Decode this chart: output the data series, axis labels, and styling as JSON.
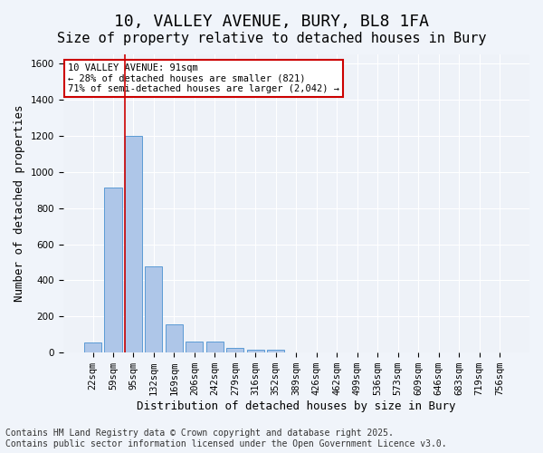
{
  "title_line1": "10, VALLEY AVENUE, BURY, BL8 1FA",
  "title_line2": "Size of property relative to detached houses in Bury",
  "xlabel": "Distribution of detached houses by size in Bury",
  "ylabel": "Number of detached properties",
  "bar_color": "#aec6e8",
  "bar_edge_color": "#5b9bd5",
  "background_color": "#eef2f8",
  "grid_color": "#ffffff",
  "categories": [
    "22sqm",
    "59sqm",
    "95sqm",
    "132sqm",
    "169sqm",
    "206sqm",
    "242sqm",
    "279sqm",
    "316sqm",
    "352sqm",
    "389sqm",
    "426sqm",
    "462sqm",
    "499sqm",
    "536sqm",
    "573sqm",
    "609sqm",
    "646sqm",
    "683sqm",
    "719sqm",
    "756sqm"
  ],
  "values": [
    55,
    915,
    1200,
    475,
    155,
    62,
    62,
    28,
    18,
    18,
    0,
    0,
    0,
    0,
    0,
    0,
    0,
    0,
    0,
    0,
    0
  ],
  "ylim": [
    0,
    1650
  ],
  "yticks": [
    0,
    200,
    400,
    600,
    800,
    1000,
    1200,
    1400,
    1600
  ],
  "vline_x": 2,
  "vline_color": "#cc0000",
  "annotation_title": "10 VALLEY AVENUE: 91sqm",
  "annotation_line2": "← 28% of detached houses are smaller (821)",
  "annotation_line3": "71% of semi-detached houses are larger (2,042) →",
  "annotation_box_color": "#cc0000",
  "footer_line1": "Contains HM Land Registry data © Crown copyright and database right 2025.",
  "footer_line2": "Contains public sector information licensed under the Open Government Licence v3.0.",
  "title_fontsize": 13,
  "subtitle_fontsize": 11,
  "axis_label_fontsize": 9,
  "tick_fontsize": 7.5,
  "footer_fontsize": 7
}
